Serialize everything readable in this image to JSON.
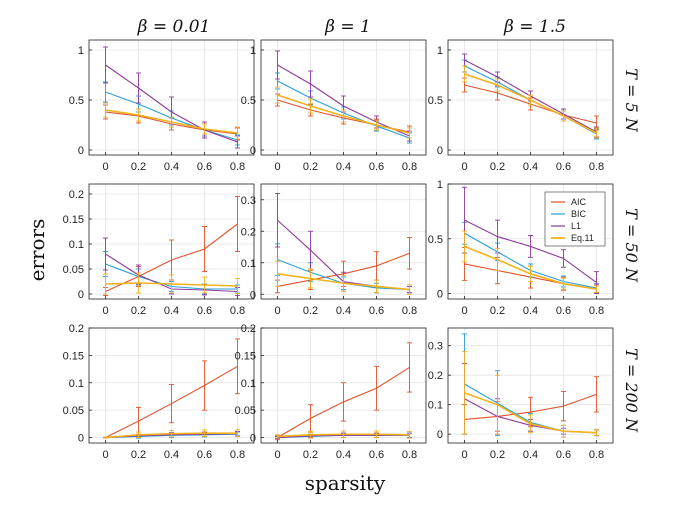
{
  "figure": {
    "ylabel": "errors",
    "xlabel": "sparsity",
    "column_titles": [
      "β = 0.01",
      "β = 1",
      "β = 1.5"
    ],
    "row_labels": [
      "T = 5 N",
      "T = 50 N",
      "T = 200 N"
    ]
  },
  "legend": {
    "entries": [
      {
        "name": "AIC",
        "color": "#e0532b"
      },
      {
        "name": "BIC",
        "color": "#2a9fd6"
      },
      {
        "name": "L1",
        "color": "#8e3a9e"
      },
      {
        "name": "Eq.11",
        "color": "#f2b21c"
      }
    ]
  },
  "chart_data": [
    {
      "type": "line",
      "row": 0,
      "col": 0,
      "x": [
        0,
        0.2,
        0.4,
        0.6,
        0.8
      ],
      "xlim": [
        -0.1,
        0.9
      ],
      "ylim": [
        -0.05,
        1.1
      ],
      "yticks": [
        0,
        0.5,
        1
      ],
      "ytick_labels": [
        "0",
        "0.5",
        "1"
      ],
      "xtick_labels": [
        "0",
        "0.2",
        "0.4",
        "0.6",
        "0.8"
      ],
      "series": [
        {
          "name": "AIC",
          "values": [
            0.38,
            0.34,
            0.26,
            0.2,
            0.16
          ],
          "err": [
            0.07,
            0.07,
            0.06,
            0.06,
            0.06
          ]
        },
        {
          "name": "BIC",
          "values": [
            0.58,
            0.46,
            0.32,
            0.2,
            0.1
          ],
          "err": [
            0.1,
            0.08,
            0.07,
            0.06,
            0.05
          ]
        },
        {
          "name": "L1",
          "values": [
            0.85,
            0.62,
            0.38,
            0.2,
            0.08
          ],
          "err": [
            0.18,
            0.15,
            0.15,
            0.08,
            0.06
          ]
        },
        {
          "name": "Eq.11",
          "values": [
            0.4,
            0.35,
            0.28,
            0.21,
            0.17
          ],
          "err": [
            0.07,
            0.06,
            0.05,
            0.05,
            0.06
          ]
        }
      ]
    },
    {
      "type": "line",
      "row": 0,
      "col": 1,
      "x": [
        0,
        0.2,
        0.4,
        0.6,
        0.8
      ],
      "xlim": [
        -0.1,
        0.9
      ],
      "ylim": [
        -0.05,
        1.1
      ],
      "yticks": [
        0,
        0.5,
        1
      ],
      "ytick_labels": [
        "0",
        "0.5",
        "1"
      ],
      "xtick_labels": [
        "0",
        "0.2",
        "0.4",
        "0.6",
        "0.8"
      ],
      "series": [
        {
          "name": "AIC",
          "values": [
            0.5,
            0.4,
            0.32,
            0.25,
            0.18
          ],
          "err": [
            0.06,
            0.06,
            0.06,
            0.06,
            0.06
          ]
        },
        {
          "name": "BIC",
          "values": [
            0.69,
            0.52,
            0.37,
            0.24,
            0.12
          ],
          "err": [
            0.08,
            0.07,
            0.06,
            0.05,
            0.05
          ]
        },
        {
          "name": "L1",
          "values": [
            0.85,
            0.66,
            0.44,
            0.28,
            0.14
          ],
          "err": [
            0.14,
            0.13,
            0.1,
            0.06,
            0.05
          ]
        },
        {
          "name": "Eq.11",
          "values": [
            0.55,
            0.44,
            0.34,
            0.25,
            0.17
          ],
          "err": [
            0.08,
            0.07,
            0.06,
            0.05,
            0.05
          ]
        }
      ]
    },
    {
      "type": "line",
      "row": 0,
      "col": 2,
      "x": [
        0,
        0.2,
        0.4,
        0.6,
        0.8
      ],
      "xlim": [
        -0.1,
        0.9
      ],
      "ylim": [
        -0.05,
        1.1
      ],
      "yticks": [
        0,
        0.5,
        1
      ],
      "ytick_labels": [
        "0",
        "0.5",
        "1"
      ],
      "xtick_labels": [
        "0",
        "0.2",
        "0.4",
        "0.6",
        "0.8"
      ],
      "series": [
        {
          "name": "AIC",
          "values": [
            0.65,
            0.57,
            0.46,
            0.35,
            0.27
          ],
          "err": [
            0.07,
            0.07,
            0.06,
            0.06,
            0.07
          ]
        },
        {
          "name": "BIC",
          "values": [
            0.84,
            0.68,
            0.5,
            0.34,
            0.16
          ],
          "err": [
            0.06,
            0.05,
            0.05,
            0.05,
            0.05
          ]
        },
        {
          "name": "L1",
          "values": [
            0.9,
            0.73,
            0.54,
            0.36,
            0.18
          ],
          "err": [
            0.06,
            0.05,
            0.05,
            0.05,
            0.05
          ]
        },
        {
          "name": "Eq.11",
          "values": [
            0.76,
            0.65,
            0.5,
            0.34,
            0.17
          ],
          "err": [
            0.08,
            0.06,
            0.05,
            0.05,
            0.05
          ]
        }
      ]
    },
    {
      "type": "line",
      "row": 1,
      "col": 0,
      "x": [
        0,
        0.2,
        0.4,
        0.6,
        0.8
      ],
      "xlim": [
        -0.1,
        0.9
      ],
      "ylim": [
        -0.01,
        0.22
      ],
      "yticks": [
        0,
        0.05,
        0.1,
        0.15,
        0.2
      ],
      "ytick_labels": [
        "0",
        "0.05",
        "0.1",
        "0.15",
        "0.2"
      ],
      "xtick_labels": [
        "0",
        "0.2",
        "0.4",
        "0.6",
        "0.8"
      ],
      "series": [
        {
          "name": "AIC",
          "values": [
            0.005,
            0.035,
            0.068,
            0.09,
            0.14
          ],
          "err": [
            0.008,
            0.02,
            0.04,
            0.045,
            0.055
          ]
        },
        {
          "name": "BIC",
          "values": [
            0.06,
            0.035,
            0.015,
            0.01,
            0.01
          ],
          "err": [
            0.025,
            0.015,
            0.01,
            0.01,
            0.008
          ]
        },
        {
          "name": "L1",
          "values": [
            0.08,
            0.038,
            0.01,
            0.008,
            0.005
          ],
          "err": [
            0.032,
            0.02,
            0.01,
            0.01,
            0.008
          ]
        },
        {
          "name": "Eq.11",
          "values": [
            0.02,
            0.022,
            0.02,
            0.018,
            0.016
          ],
          "err": [
            0.02,
            0.02,
            0.018,
            0.016,
            0.015
          ]
        }
      ]
    },
    {
      "type": "line",
      "row": 1,
      "col": 1,
      "x": [
        0,
        0.2,
        0.4,
        0.6,
        0.8
      ],
      "xlim": [
        -0.1,
        0.9
      ],
      "ylim": [
        -0.015,
        0.35
      ],
      "yticks": [
        0,
        0.1,
        0.2,
        0.3
      ],
      "ytick_labels": [
        "0",
        "0.1",
        "0.2",
        "0.3"
      ],
      "xtick_labels": [
        "0",
        "0.2",
        "0.4",
        "0.6",
        "0.8"
      ],
      "series": [
        {
          "name": "AIC",
          "values": [
            0.025,
            0.045,
            0.065,
            0.09,
            0.13
          ],
          "err": [
            0.02,
            0.03,
            0.04,
            0.045,
            0.05
          ]
        },
        {
          "name": "BIC",
          "values": [
            0.11,
            0.07,
            0.035,
            0.02,
            0.015
          ],
          "err": [
            0.05,
            0.03,
            0.02,
            0.015,
            0.01
          ]
        },
        {
          "name": "L1",
          "values": [
            0.235,
            0.14,
            0.04,
            0.025,
            0.015
          ],
          "err": [
            0.085,
            0.06,
            0.03,
            0.02,
            0.01
          ]
        },
        {
          "name": "Eq.11",
          "values": [
            0.065,
            0.05,
            0.035,
            0.025,
            0.015
          ],
          "err": [
            0.04,
            0.03,
            0.025,
            0.02,
            0.015
          ]
        }
      ]
    },
    {
      "type": "line",
      "row": 1,
      "col": 2,
      "x": [
        0,
        0.2,
        0.4,
        0.6,
        0.8
      ],
      "xlim": [
        -0.1,
        0.9
      ],
      "ylim": [
        -0.05,
        1.0
      ],
      "yticks": [
        0,
        0.5,
        1
      ],
      "ytick_labels": [
        "0",
        "0.5",
        "1"
      ],
      "xtick_labels": [
        "0",
        "0.2",
        "0.4",
        "0.6",
        "0.8"
      ],
      "series": [
        {
          "name": "AIC",
          "values": [
            0.27,
            0.21,
            0.15,
            0.09,
            0.04
          ],
          "err": [
            0.15,
            0.12,
            0.1,
            0.06,
            0.04
          ]
        },
        {
          "name": "BIC",
          "values": [
            0.55,
            0.38,
            0.21,
            0.11,
            0.05
          ],
          "err": [
            0.1,
            0.08,
            0.06,
            0.05,
            0.04
          ]
        },
        {
          "name": "L1",
          "values": [
            0.67,
            0.52,
            0.43,
            0.32,
            0.1
          ],
          "err": [
            0.3,
            0.15,
            0.1,
            0.08,
            0.1
          ]
        },
        {
          "name": "Eq.11",
          "values": [
            0.43,
            0.31,
            0.18,
            0.09,
            0.04
          ],
          "err": [
            0.14,
            0.1,
            0.07,
            0.05,
            0.03
          ]
        }
      ]
    },
    {
      "type": "line",
      "row": 2,
      "col": 0,
      "x": [
        0,
        0.2,
        0.4,
        0.6,
        0.8
      ],
      "xlim": [
        -0.1,
        0.9
      ],
      "ylim": [
        -0.01,
        0.2
      ],
      "yticks": [
        0,
        0.05,
        0.1,
        0.15,
        0.2
      ],
      "ytick_labels": [
        "0",
        "0.05",
        "0.1",
        "0.15",
        "0.2"
      ],
      "xtick_labels": [
        "0",
        "0.2",
        "0.4",
        "0.6",
        "0.8"
      ],
      "series": [
        {
          "name": "AIC",
          "values": [
            0.0,
            0.03,
            0.062,
            0.095,
            0.13
          ],
          "err": [
            0.001,
            0.025,
            0.035,
            0.045,
            0.05
          ]
        },
        {
          "name": "BIC",
          "values": [
            0.0,
            0.002,
            0.004,
            0.005,
            0.006
          ],
          "err": [
            0.001,
            0.003,
            0.004,
            0.004,
            0.004
          ]
        },
        {
          "name": "L1",
          "values": [
            0.0,
            0.003,
            0.005,
            0.006,
            0.007
          ],
          "err": [
            0.001,
            0.003,
            0.004,
            0.004,
            0.004
          ]
        },
        {
          "name": "Eq.11",
          "values": [
            0.0,
            0.005,
            0.007,
            0.008,
            0.008
          ],
          "err": [
            0.001,
            0.005,
            0.006,
            0.006,
            0.006
          ]
        }
      ]
    },
    {
      "type": "line",
      "row": 2,
      "col": 1,
      "x": [
        0,
        0.2,
        0.4,
        0.6,
        0.8
      ],
      "xlim": [
        -0.1,
        0.9
      ],
      "ylim": [
        -0.01,
        0.2
      ],
      "yticks": [
        0,
        0.05,
        0.1,
        0.15,
        0.2
      ],
      "ytick_labels": [
        "0",
        "0.05",
        "0.1",
        "0.15",
        "0.2"
      ],
      "xtick_labels": [
        "0",
        "0.2",
        "0.4",
        "0.6",
        "0.8"
      ],
      "series": [
        {
          "name": "AIC",
          "values": [
            0.0,
            0.035,
            0.065,
            0.09,
            0.128
          ],
          "err": [
            0.004,
            0.025,
            0.035,
            0.04,
            0.045
          ]
        },
        {
          "name": "BIC",
          "values": [
            0.0,
            0.002,
            0.004,
            0.004,
            0.004
          ],
          "err": [
            0.002,
            0.003,
            0.004,
            0.004,
            0.004
          ]
        },
        {
          "name": "L1",
          "values": [
            0.0,
            0.003,
            0.004,
            0.004,
            0.004
          ],
          "err": [
            0.002,
            0.003,
            0.004,
            0.004,
            0.004
          ]
        },
        {
          "name": "Eq.11",
          "values": [
            0.002,
            0.005,
            0.006,
            0.006,
            0.005
          ],
          "err": [
            0.003,
            0.006,
            0.006,
            0.006,
            0.006
          ]
        }
      ]
    },
    {
      "type": "line",
      "row": 2,
      "col": 2,
      "x": [
        0,
        0.2,
        0.4,
        0.6,
        0.8
      ],
      "xlim": [
        -0.1,
        0.9
      ],
      "ylim": [
        -0.03,
        0.36
      ],
      "yticks": [
        0,
        0.1,
        0.2,
        0.3
      ],
      "ytick_labels": [
        "0",
        "0.1",
        "0.2",
        "0.3"
      ],
      "xtick_labels": [
        "0",
        "0.2",
        "0.4",
        "0.6",
        "0.8"
      ],
      "series": [
        {
          "name": "AIC",
          "values": [
            0.05,
            0.06,
            0.075,
            0.095,
            0.135
          ],
          "err": [
            0.05,
            0.05,
            0.05,
            0.05,
            0.06
          ]
        },
        {
          "name": "BIC",
          "values": [
            0.17,
            0.105,
            0.04,
            0.01,
            0.005
          ],
          "err": [
            0.17,
            0.11,
            0.03,
            0.02,
            0.01
          ]
        },
        {
          "name": "L1",
          "values": [
            0.12,
            0.06,
            0.03,
            0.01,
            0.005
          ],
          "err": [
            0.12,
            0.06,
            0.02,
            0.01,
            0.01
          ]
        },
        {
          "name": "Eq.11",
          "values": [
            0.14,
            0.1,
            0.035,
            0.01,
            0.005
          ],
          "err": [
            0.14,
            0.1,
            0.03,
            0.02,
            0.01
          ]
        }
      ]
    }
  ]
}
